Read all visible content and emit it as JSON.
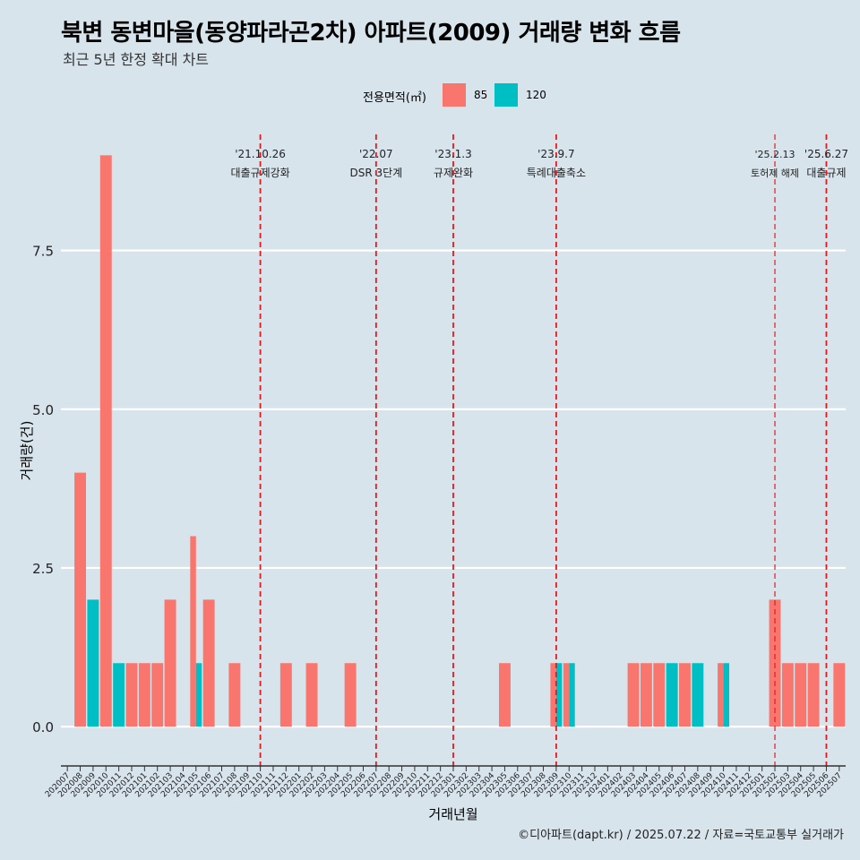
{
  "title": "북변 동변마을(동양파라곤2차) 아파트(2009) 거래량 변화 흐름",
  "subtitle": "최근 5년 한정 확대 차트",
  "caption": "©디아파트(dapt.kr) / 2025.07.22 / 자료=국토교통부 실거래가",
  "colors": {
    "background": "#d7e4ec",
    "s85": "#f8766d",
    "s120": "#00bfc4",
    "event_line": "#e41a1c",
    "grid": "#ffffff"
  },
  "chart_data": {
    "type": "bar",
    "title": "북변 동변마을(동양파라곤2차) 아파트(2009) 거래량 변화 흐름",
    "xlabel": "거래년월",
    "ylabel": "거래량(건)",
    "ylim": [
      -0.45,
      9.4
    ],
    "yticks": [
      0.0,
      2.5,
      5.0,
      7.5
    ],
    "ytick_labels": [
      "0.0",
      "2.5",
      "5.0",
      "7.5"
    ],
    "legend_title": "전용면적(㎡)",
    "legend_position": "top",
    "categories": [
      "202007",
      "202008",
      "202009",
      "202010",
      "202011",
      "202012",
      "202101",
      "202102",
      "202103",
      "202104",
      "202105",
      "202106",
      "202107",
      "202108",
      "202109",
      "202110",
      "202111",
      "202112",
      "202201",
      "202202",
      "202203",
      "202204",
      "202205",
      "202206",
      "202207",
      "202208",
      "202209",
      "202210",
      "202211",
      "202212",
      "202301",
      "202302",
      "202303",
      "202304",
      "202305",
      "202306",
      "202307",
      "202308",
      "202309",
      "202310",
      "202311",
      "202312",
      "202401",
      "202402",
      "202403",
      "202404",
      "202405",
      "202406",
      "202407",
      "202408",
      "202409",
      "202410",
      "202411",
      "202412",
      "202501",
      "202502",
      "202503",
      "202504",
      "202505",
      "202506",
      "202507"
    ],
    "series": [
      {
        "name": "85",
        "values": [
          0,
          4,
          0,
          9,
          0,
          1,
          1,
          1,
          2,
          0,
          3,
          2,
          0,
          1,
          0,
          0,
          0,
          1,
          0,
          1,
          0,
          0,
          1,
          0,
          0,
          0,
          0,
          0,
          0,
          0,
          0,
          0,
          0,
          0,
          1,
          0,
          0,
          0,
          1,
          1,
          0,
          0,
          0,
          0,
          1,
          1,
          1,
          0,
          1,
          0,
          0,
          1,
          0,
          0,
          0,
          2,
          1,
          1,
          1,
          0,
          1
        ]
      },
      {
        "name": "120",
        "values": [
          0,
          0,
          2,
          0,
          1,
          0,
          0,
          0,
          0,
          0,
          1,
          0,
          0,
          0,
          0,
          0,
          0,
          0,
          0,
          0,
          0,
          0,
          0,
          0,
          0,
          0,
          0,
          0,
          0,
          0,
          0,
          0,
          0,
          0,
          0,
          0,
          0,
          0,
          1,
          1,
          0,
          0,
          0,
          0,
          0,
          0,
          0,
          1,
          0,
          1,
          0,
          1,
          0,
          0,
          0,
          0,
          0,
          0,
          0,
          0,
          0
        ]
      }
    ],
    "events": [
      {
        "category": "202110",
        "date": "'21.10.26",
        "label": "대출규제강화"
      },
      {
        "category": "202207",
        "date": "'22.07",
        "label": "DSR 3단계"
      },
      {
        "category": "202301",
        "date": "'23.1.3",
        "label": "규제완화"
      },
      {
        "category": "202309",
        "date": "'23.9.7",
        "label": "특례대출축소"
      },
      {
        "category": "202502",
        "date": "'25.2.13",
        "label": "토허제 해제"
      },
      {
        "category": "202506",
        "date": "'25.6.27",
        "label": "대출규제"
      }
    ]
  }
}
